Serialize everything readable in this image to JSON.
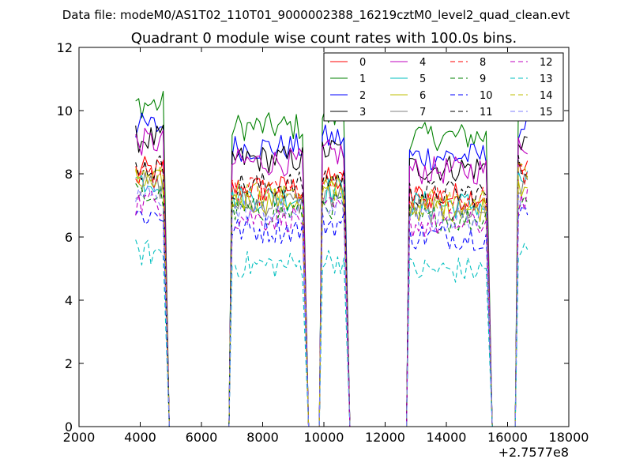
{
  "figure": {
    "suptitle": "Data file: modeM0/AS1T02_110T01_9000002388_16219cztM0_level2_quad_clean.evt",
    "axis_offset_label": "+2.7577e8"
  },
  "chart_data": {
    "type": "line",
    "title": "Quadrant 0 module wise count rates with 100.0s bins.",
    "xlabel": "",
    "ylabel": "",
    "xlim": [
      2000,
      18000
    ],
    "ylim": [
      0,
      12
    ],
    "x_ticks": [
      "2000",
      "4000",
      "6000",
      "8000",
      "10000",
      "12000",
      "14000",
      "16000",
      "18000"
    ],
    "y_ticks": [
      "0",
      "2",
      "4",
      "6",
      "8",
      "10",
      "12"
    ],
    "grid": false,
    "legend_position": "top-right",
    "legend_columns": 4,
    "segments": [
      {
        "name": "seg1",
        "x": [
          3850,
          3950,
          4050,
          4150,
          4250,
          4350,
          4450,
          4550,
          4650,
          4750
        ]
      },
      {
        "name": "seg2",
        "x": [
          7000,
          7100,
          7200,
          7300,
          7400,
          7500,
          7600,
          7700,
          7800,
          7900,
          8000,
          8100,
          8200,
          8300,
          8400,
          8500,
          8600,
          8700,
          8800,
          8900,
          9000,
          9100,
          9200,
          9300
        ]
      },
      {
        "name": "seg3",
        "x": [
          9950,
          10050,
          10150,
          10250,
          10350,
          10450,
          10550,
          10650
        ]
      },
      {
        "name": "seg4",
        "x": [
          12800,
          12900,
          13000,
          13100,
          13200,
          13300,
          13400,
          13500,
          13600,
          13700,
          13800,
          13900,
          14000,
          14100,
          14200,
          14300,
          14400,
          14500,
          14600,
          14700,
          14800,
          14900,
          15000,
          15100,
          15200,
          15300
        ]
      },
      {
        "name": "seg5",
        "x": [
          16350,
          16450,
          16550,
          16650
        ]
      }
    ],
    "gaps": [
      {
        "x": [
          4950,
          5100,
          6900
        ],
        "y": [
          0,
          0,
          0
        ]
      },
      {
        "x": [
          9500,
          9700,
          9850
        ],
        "y": [
          0,
          0,
          0
        ]
      },
      {
        "x": [
          10850,
          11000,
          12700
        ],
        "y": [
          0,
          0,
          0
        ]
      },
      {
        "x": [
          15500,
          15600,
          16250
        ],
        "y": [
          0,
          0,
          0
        ]
      }
    ],
    "series": [
      {
        "name": "0",
        "color": "#ff0000",
        "dash": "solid",
        "level": 8.1
      },
      {
        "name": "1",
        "color": "#008000",
        "dash": "solid",
        "level": 10.2
      },
      {
        "name": "2",
        "color": "#0000ff",
        "dash": "solid",
        "level": 9.5
      },
      {
        "name": "3",
        "color": "#000000",
        "dash": "solid",
        "level": 9.1
      },
      {
        "name": "4",
        "color": "#bf00bf",
        "dash": "solid",
        "level": 9.0
      },
      {
        "name": "5",
        "color": "#00bfbf",
        "dash": "solid",
        "level": 7.8
      },
      {
        "name": "6",
        "color": "#bfbf00",
        "dash": "solid",
        "level": 7.7
      },
      {
        "name": "7",
        "color": "#808080",
        "dash": "solid",
        "level": 7.6
      },
      {
        "name": "8",
        "color": "#ff0000",
        "dash": "dashed",
        "level": 8.0
      },
      {
        "name": "9",
        "color": "#008000",
        "dash": "dashed",
        "level": 7.3
      },
      {
        "name": "10",
        "color": "#0000ff",
        "dash": "dashed",
        "level": 6.7
      },
      {
        "name": "11",
        "color": "#000000",
        "dash": "dashed",
        "level": 8.2
      },
      {
        "name": "12",
        "color": "#bf00bf",
        "dash": "dashed",
        "level": 7.1
      },
      {
        "name": "13",
        "color": "#00bfbf",
        "dash": "dashed",
        "level": 5.5
      },
      {
        "name": "14",
        "color": "#bfbf00",
        "dash": "dashed",
        "level": 7.9
      },
      {
        "name": "15",
        "color": "#7f7fff",
        "dash": "dashed",
        "level": 7.3
      }
    ]
  }
}
